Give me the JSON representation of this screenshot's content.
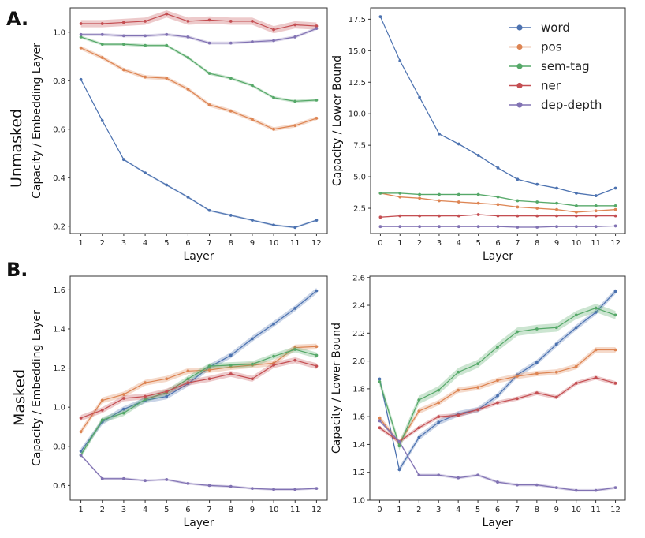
{
  "figure": {
    "row_labels": [
      {
        "letter": "A.",
        "label": "Unmasked"
      },
      {
        "letter": "B.",
        "label": "Masked"
      }
    ]
  },
  "series_colors": {
    "word": "#4c72b0",
    "pos": "#dd8452",
    "sem-tag": "#55a868",
    "ner": "#c44e52",
    "dep-depth": "#8172b3"
  },
  "legend": {
    "position": "top-right of panel A right",
    "entries": [
      "word",
      "pos",
      "sem-tag",
      "ner",
      "dep-depth"
    ]
  },
  "chart_data": [
    {
      "type": "line",
      "id": "A-left",
      "title": "",
      "xlabel": "Layer",
      "ylabel": "Capacity / Embedding Layer",
      "x": [
        1,
        2,
        3,
        4,
        5,
        6,
        7,
        8,
        9,
        10,
        11,
        12
      ],
      "xticks": [
        "1",
        "2",
        "3",
        "4",
        "5",
        "6",
        "7",
        "8",
        "9",
        "10",
        "11",
        "12"
      ],
      "yticks": [
        "0.2",
        "0.4",
        "0.6",
        "0.8",
        "1.0"
      ],
      "ytick_values": [
        0.2,
        0.4,
        0.6,
        0.8,
        1.0
      ],
      "xlim": [
        0.5,
        12.5
      ],
      "ylim": [
        0.17,
        1.1
      ],
      "series": [
        {
          "name": "word",
          "values": [
            0.805,
            0.635,
            0.475,
            0.42,
            0.37,
            0.32,
            0.265,
            0.245,
            0.225,
            0.205,
            0.195,
            0.225
          ],
          "band": 0.004
        },
        {
          "name": "pos",
          "values": [
            0.935,
            0.895,
            0.845,
            0.815,
            0.81,
            0.765,
            0.7,
            0.675,
            0.64,
            0.6,
            0.615,
            0.645
          ],
          "band": 0.008
        },
        {
          "name": "sem-tag",
          "values": [
            0.98,
            0.95,
            0.95,
            0.945,
            0.945,
            0.895,
            0.83,
            0.81,
            0.78,
            0.73,
            0.715,
            0.72
          ],
          "band": 0.006
        },
        {
          "name": "ner",
          "values": [
            1.035,
            1.035,
            1.04,
            1.045,
            1.075,
            1.045,
            1.05,
            1.045,
            1.045,
            1.01,
            1.03,
            1.025
          ],
          "band": 0.015
        },
        {
          "name": "dep-depth",
          "values": [
            0.99,
            0.99,
            0.985,
            0.985,
            0.99,
            0.98,
            0.955,
            0.955,
            0.96,
            0.965,
            0.98,
            1.015
          ],
          "band": 0.006
        }
      ]
    },
    {
      "type": "line",
      "id": "A-right",
      "title": "",
      "xlabel": "Layer",
      "ylabel": "Capacity / Lower Bound",
      "x": [
        0,
        1,
        2,
        3,
        4,
        5,
        6,
        7,
        8,
        9,
        10,
        11,
        12
      ],
      "xticks": [
        "0",
        "1",
        "2",
        "3",
        "4",
        "5",
        "6",
        "7",
        "8",
        "9",
        "10",
        "11",
        "12"
      ],
      "yticks": [
        "2.5",
        "5.0",
        "7.5",
        "10.0",
        "12.5",
        "15.0",
        "17.5"
      ],
      "ytick_values": [
        2.5,
        5.0,
        7.5,
        10.0,
        12.5,
        15.0,
        17.5
      ],
      "xlim": [
        -0.5,
        12.5
      ],
      "ylim": [
        0.5,
        18.4
      ],
      "series": [
        {
          "name": "word",
          "values": [
            17.7,
            14.2,
            11.3,
            8.4,
            7.6,
            6.7,
            5.7,
            4.8,
            4.4,
            4.1,
            3.7,
            3.5,
            4.1
          ],
          "band": 0.05
        },
        {
          "name": "pos",
          "values": [
            3.7,
            3.4,
            3.3,
            3.1,
            3.0,
            2.9,
            2.8,
            2.6,
            2.5,
            2.4,
            2.2,
            2.3,
            2.4
          ],
          "band": 0.05
        },
        {
          "name": "sem-tag",
          "values": [
            3.7,
            3.7,
            3.6,
            3.6,
            3.6,
            3.6,
            3.4,
            3.1,
            3.0,
            2.9,
            2.7,
            2.7,
            2.7
          ],
          "band": 0.05
        },
        {
          "name": "ner",
          "values": [
            1.8,
            1.9,
            1.9,
            1.9,
            1.9,
            2.0,
            1.9,
            1.9,
            1.9,
            1.9,
            1.9,
            1.9,
            1.9
          ],
          "band": 0.04
        },
        {
          "name": "dep-depth",
          "values": [
            1.05,
            1.05,
            1.05,
            1.05,
            1.05,
            1.05,
            1.05,
            1.0,
            1.0,
            1.05,
            1.05,
            1.05,
            1.1
          ],
          "band": 0.04
        }
      ]
    },
    {
      "type": "line",
      "id": "B-left",
      "title": "",
      "xlabel": "Layer",
      "ylabel": "Capacity / Embedding Layer",
      "x": [
        1,
        2,
        3,
        4,
        5,
        6,
        7,
        8,
        9,
        10,
        11,
        12
      ],
      "xticks": [
        "1",
        "2",
        "3",
        "4",
        "5",
        "6",
        "7",
        "8",
        "9",
        "10",
        "11",
        "12"
      ],
      "yticks": [
        "0.6",
        "0.8",
        "1.0",
        "1.2",
        "1.4",
        "1.6"
      ],
      "ytick_values": [
        0.6,
        0.8,
        1.0,
        1.2,
        1.4,
        1.6
      ],
      "xlim": [
        0.5,
        12.5
      ],
      "ylim": [
        0.525,
        1.67
      ],
      "series": [
        {
          "name": "word",
          "values": [
            0.775,
            0.925,
            0.99,
            1.035,
            1.055,
            1.12,
            1.205,
            1.265,
            1.35,
            1.425,
            1.505,
            1.595
          ],
          "band": 0.015
        },
        {
          "name": "pos",
          "values": [
            0.875,
            1.035,
            1.065,
            1.125,
            1.145,
            1.185,
            1.19,
            1.205,
            1.215,
            1.225,
            1.305,
            1.31
          ],
          "band": 0.015
        },
        {
          "name": "sem-tag",
          "values": [
            0.755,
            0.935,
            0.97,
            1.04,
            1.075,
            1.145,
            1.21,
            1.215,
            1.22,
            1.26,
            1.295,
            1.265
          ],
          "band": 0.015
        },
        {
          "name": "ner",
          "values": [
            0.945,
            0.985,
            1.045,
            1.055,
            1.08,
            1.125,
            1.145,
            1.17,
            1.145,
            1.215,
            1.24,
            1.21
          ],
          "band": 0.015
        },
        {
          "name": "dep-depth",
          "values": [
            0.755,
            0.635,
            0.635,
            0.625,
            0.63,
            0.61,
            0.6,
            0.595,
            0.585,
            0.58,
            0.58,
            0.585
          ],
          "band": 0.006
        }
      ]
    },
    {
      "type": "line",
      "id": "B-right",
      "title": "",
      "xlabel": "Layer",
      "ylabel": "Capacity / Lower Bound",
      "x": [
        0,
        1,
        2,
        3,
        4,
        5,
        6,
        7,
        8,
        9,
        10,
        11,
        12
      ],
      "xticks": [
        "0",
        "1",
        "2",
        "3",
        "4",
        "5",
        "6",
        "7",
        "8",
        "9",
        "10",
        "11",
        "12"
      ],
      "yticks": [
        "1.0",
        "1.2",
        "1.4",
        "1.6",
        "1.8",
        "2.0",
        "2.2",
        "2.4",
        "2.6"
      ],
      "ytick_values": [
        1.0,
        1.2,
        1.4,
        1.6,
        1.8,
        2.0,
        2.2,
        2.4,
        2.6
      ],
      "xlim": [
        -0.5,
        12.5
      ],
      "ylim": [
        1.0,
        2.61
      ],
      "series": [
        {
          "name": "word",
          "values": [
            1.87,
            1.22,
            1.45,
            1.56,
            1.62,
            1.65,
            1.75,
            1.9,
            1.99,
            2.12,
            2.24,
            2.35,
            2.5
          ],
          "band": 0.02
        },
        {
          "name": "pos",
          "values": [
            1.59,
            1.41,
            1.64,
            1.7,
            1.79,
            1.81,
            1.86,
            1.89,
            1.91,
            1.92,
            1.96,
            2.08,
            2.08
          ],
          "band": 0.02
        },
        {
          "name": "sem-tag",
          "values": [
            1.85,
            1.39,
            1.72,
            1.79,
            1.92,
            1.98,
            2.1,
            2.21,
            2.23,
            2.24,
            2.33,
            2.38,
            2.33
          ],
          "band": 0.03
        },
        {
          "name": "ner",
          "values": [
            1.52,
            1.42,
            1.52,
            1.6,
            1.61,
            1.65,
            1.7,
            1.73,
            1.77,
            1.74,
            1.84,
            1.88,
            1.84
          ],
          "band": 0.015
        },
        {
          "name": "dep-depth",
          "values": [
            1.57,
            1.42,
            1.18,
            1.18,
            1.16,
            1.18,
            1.13,
            1.11,
            1.11,
            1.09,
            1.07,
            1.07,
            1.09
          ],
          "band": 0.01
        }
      ]
    }
  ]
}
